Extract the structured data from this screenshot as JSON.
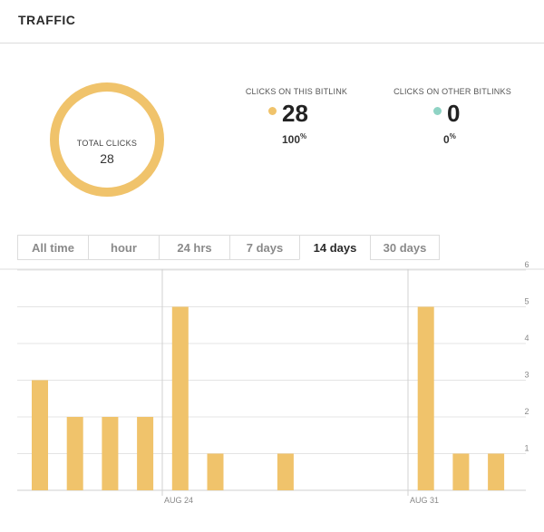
{
  "header": {
    "title": "TRAFFIC"
  },
  "summary": {
    "total_label": "TOTAL CLICKS",
    "total_value": "28",
    "this_label": "CLICKS ON THIS BITLINK",
    "this_value": "28",
    "this_pct": "100",
    "this_color": "#f0c36b",
    "other_label": "CLICKS ON OTHER BITLINKS",
    "other_value": "0",
    "other_pct": "0",
    "other_color": "#8fd3c4",
    "pct_symbol": "%"
  },
  "tabs": [
    {
      "label": "All time",
      "active": false
    },
    {
      "label": "hour",
      "active": false
    },
    {
      "label": "24 hrs",
      "active": false
    },
    {
      "label": "7 days",
      "active": false
    },
    {
      "label": "14 days",
      "active": true
    },
    {
      "label": "30 days",
      "active": false
    }
  ],
  "chart_data": {
    "type": "bar",
    "categories": [
      "",
      "",
      "",
      "",
      "Aug 24",
      "",
      "",
      "",
      "",
      "",
      "",
      "Aug 31",
      "",
      "",
      ""
    ],
    "values": [
      3,
      2,
      2,
      2,
      5,
      1,
      0,
      1,
      0,
      0,
      0,
      5,
      1,
      1,
      0
    ],
    "x_tick_labels": [
      "AUG 24",
      "AUG 31"
    ],
    "y_ticks": [
      1,
      2,
      3,
      4,
      5,
      6
    ],
    "ylim": [
      0,
      6
    ],
    "bar_color": "#f0c36b",
    "grid": true
  }
}
